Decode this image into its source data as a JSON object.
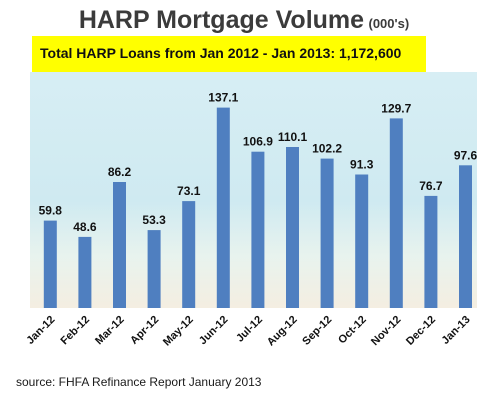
{
  "header": {
    "title": "HARP Mortgage Volume",
    "unit": "(000's)"
  },
  "banner": {
    "text": "Total HARP Loans from Jan 2012 - Jan 2013: 1,172,600"
  },
  "footer": {
    "source": "source:  FHFA Refinance Report January 2013"
  },
  "colors": {
    "bar": "#4f7fc0",
    "banner": "#ffff00",
    "title": "#3b3b3b"
  },
  "chart_data": {
    "type": "bar",
    "title": "HARP Mortgage Volume",
    "xlabel": "",
    "ylabel": "",
    "categories": [
      "Jan-12",
      "Feb-12",
      "Mar-12",
      "Apr-12",
      "May-12",
      "Jun-12",
      "Jul-12",
      "Aug-12",
      "Sep-12",
      "Oct-12",
      "Nov-12",
      "Dec-12",
      "Jan-13"
    ],
    "values": [
      59.8,
      48.6,
      86.2,
      53.3,
      73.1,
      137.1,
      106.9,
      110.1,
      102.2,
      91.3,
      129.7,
      76.7,
      97.6
    ],
    "labels": [
      "59.8",
      "48.6",
      "86.2",
      "53.3",
      "73.1",
      "137.1",
      "106.9",
      "110.1",
      "102.2",
      "91.3",
      "129.7",
      "76.7",
      "97.6"
    ],
    "ylim": [
      0,
      145
    ],
    "grid": false,
    "legend": "none"
  }
}
